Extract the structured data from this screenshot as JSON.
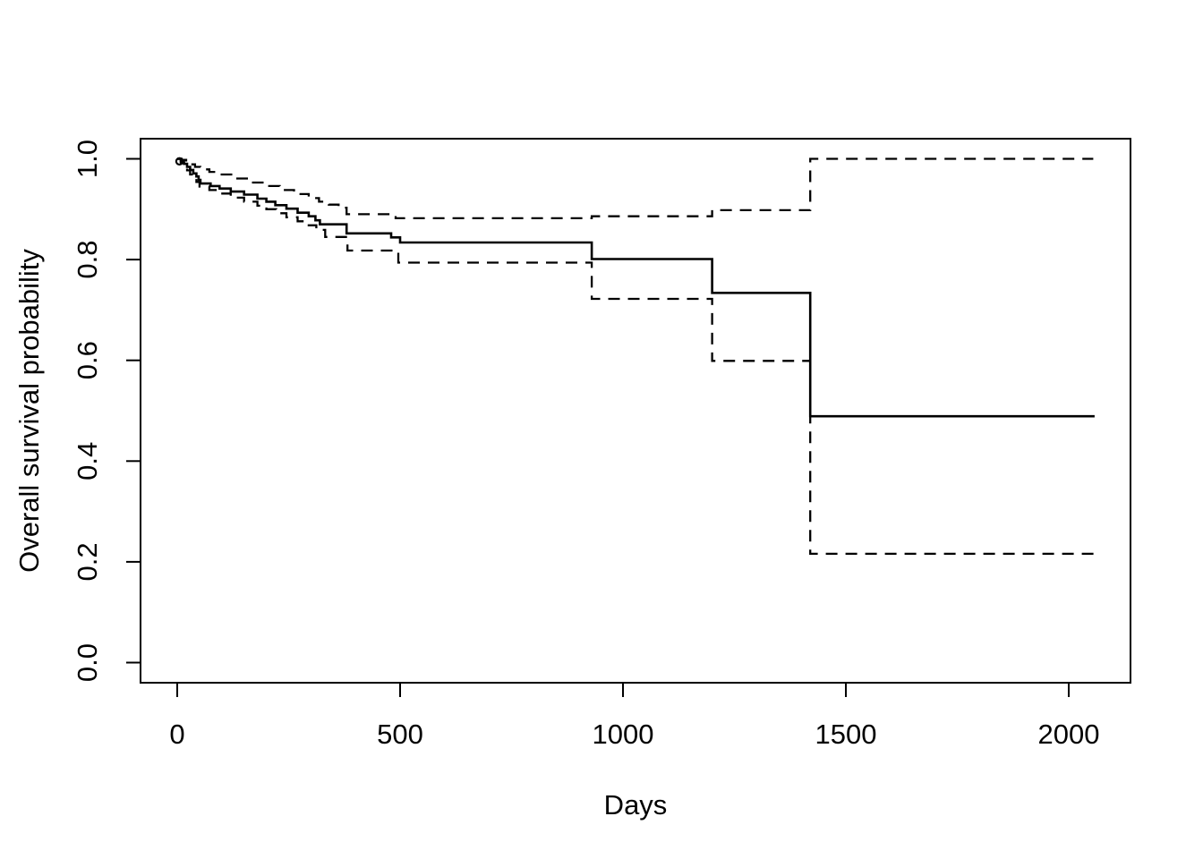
{
  "figure": {
    "background_color": "#ffffff",
    "foreground_color": "#000000"
  },
  "chart_data": {
    "type": "line",
    "subtype": "kaplan-meier-step",
    "title": "",
    "xlabel": "Days",
    "ylabel": "Overall survival probability",
    "xlim": [
      0,
      2060
    ],
    "ylim": [
      0.0,
      1.0
    ],
    "grid": false,
    "legend_position": "none",
    "x_ticks": [
      {
        "value": 0,
        "label": "0"
      },
      {
        "value": 500,
        "label": "500"
      },
      {
        "value": 1000,
        "label": "1000"
      },
      {
        "value": 1500,
        "label": "1500"
      },
      {
        "value": 2000,
        "label": "2000"
      }
    ],
    "y_ticks": [
      {
        "value": 0.0,
        "label": "0.0"
      },
      {
        "value": 0.2,
        "label": "0.2"
      },
      {
        "value": 0.4,
        "label": "0.4"
      },
      {
        "value": 0.6,
        "label": "0.6"
      },
      {
        "value": 0.8,
        "label": "0.8"
      },
      {
        "value": 1.0,
        "label": "1.0"
      }
    ],
    "start_marker": {
      "time": 5,
      "survival": 0.995,
      "shape": "open-circle"
    },
    "series": [
      {
        "name": "overall-survival-estimate",
        "style": "solid",
        "points": [
          [
            0,
            1.0
          ],
          [
            8,
            0.995
          ],
          [
            15,
            0.99
          ],
          [
            22,
            0.984
          ],
          [
            29,
            0.978
          ],
          [
            36,
            0.971
          ],
          [
            43,
            0.965
          ],
          [
            48,
            0.958
          ],
          [
            52,
            0.951
          ],
          [
            75,
            0.946
          ],
          [
            95,
            0.941
          ],
          [
            120,
            0.935
          ],
          [
            150,
            0.929
          ],
          [
            180,
            0.921
          ],
          [
            200,
            0.915
          ],
          [
            220,
            0.908
          ],
          [
            245,
            0.901
          ],
          [
            270,
            0.893
          ],
          [
            295,
            0.886
          ],
          [
            310,
            0.878
          ],
          [
            320,
            0.87
          ],
          [
            380,
            0.852
          ],
          [
            480,
            0.844
          ],
          [
            500,
            0.834
          ],
          [
            930,
            0.801
          ],
          [
            1200,
            0.734
          ],
          [
            1420,
            0.489
          ],
          [
            2058,
            0.489
          ]
        ]
      },
      {
        "name": "upper-95-confidence-limit",
        "style": "dashed",
        "points": [
          [
            0,
            1.0
          ],
          [
            10,
            0.998
          ],
          [
            20,
            0.994
          ],
          [
            30,
            0.989
          ],
          [
            40,
            0.984
          ],
          [
            52,
            0.979
          ],
          [
            72,
            0.974
          ],
          [
            95,
            0.969
          ],
          [
            130,
            0.961
          ],
          [
            165,
            0.953
          ],
          [
            200,
            0.946
          ],
          [
            230,
            0.938
          ],
          [
            262,
            0.93
          ],
          [
            295,
            0.922
          ],
          [
            318,
            0.915
          ],
          [
            340,
            0.909
          ],
          [
            362,
            0.903
          ],
          [
            380,
            0.89
          ],
          [
            490,
            0.882
          ],
          [
            930,
            0.886
          ],
          [
            1200,
            0.898
          ],
          [
            1420,
            1.0
          ],
          [
            2055,
            1.0
          ]
        ]
      },
      {
        "name": "lower-95-confidence-limit",
        "style": "dashed",
        "points": [
          [
            0,
            1.0
          ],
          [
            8,
            0.992
          ],
          [
            15,
            0.985
          ],
          [
            22,
            0.977
          ],
          [
            29,
            0.969
          ],
          [
            36,
            0.962
          ],
          [
            43,
            0.954
          ],
          [
            50,
            0.945
          ],
          [
            72,
            0.938
          ],
          [
            95,
            0.931
          ],
          [
            120,
            0.923
          ],
          [
            150,
            0.915
          ],
          [
            180,
            0.907
          ],
          [
            200,
            0.9
          ],
          [
            222,
            0.892
          ],
          [
            245,
            0.884
          ],
          [
            270,
            0.876
          ],
          [
            295,
            0.868
          ],
          [
            312,
            0.859
          ],
          [
            332,
            0.845
          ],
          [
            382,
            0.818
          ],
          [
            496,
            0.794
          ],
          [
            930,
            0.722
          ],
          [
            1200,
            0.599
          ],
          [
            1420,
            0.216
          ],
          [
            2058,
            0.216
          ]
        ]
      }
    ]
  }
}
